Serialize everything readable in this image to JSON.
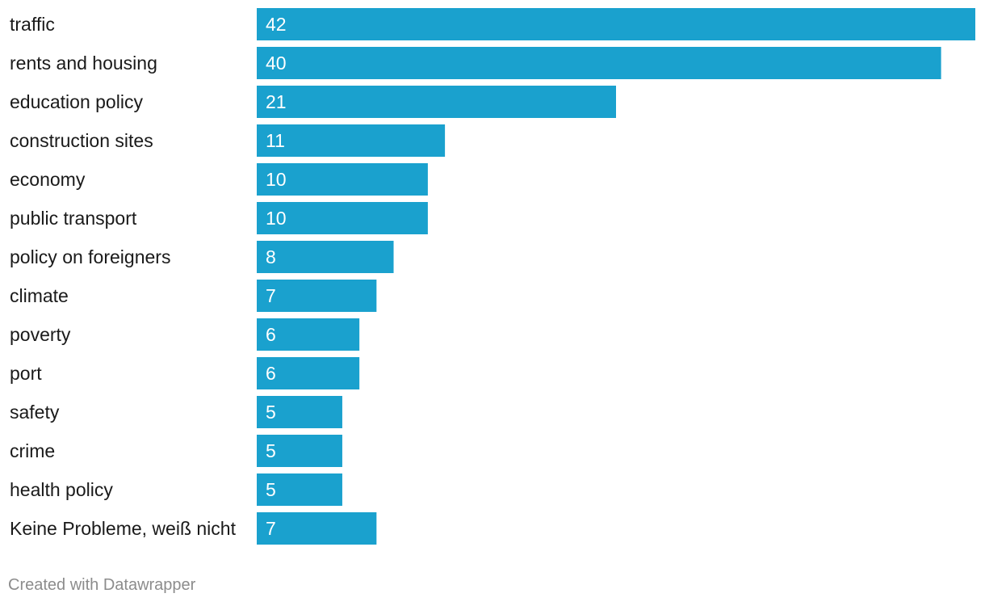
{
  "chart_data": {
    "type": "bar",
    "orientation": "horizontal",
    "categories": [
      "traffic",
      "rents and housing",
      "education policy",
      "construction sites",
      "economy",
      "public transport",
      "policy on foreigners",
      "climate",
      "poverty",
      "port",
      "safety",
      "crime",
      "health policy",
      "Keine Probleme, weiß nicht"
    ],
    "values": [
      42,
      40,
      21,
      11,
      10,
      10,
      8,
      7,
      6,
      6,
      5,
      5,
      5,
      7
    ],
    "value_labels": [
      "42",
      "40",
      "21",
      "11",
      "10",
      "10",
      "8",
      "7",
      "6",
      "6",
      "5",
      "5",
      "5",
      "7"
    ],
    "title": "",
    "xlabel": "",
    "ylabel": "",
    "xlim": [
      0,
      42
    ],
    "grid": false,
    "legend": "none"
  },
  "colors": {
    "bar": "#1aa1ce",
    "value_text": "#ffffff",
    "category_text": "#1a1a1a",
    "footer_text": "#8c8c8c"
  },
  "footer": {
    "credit": "Created with Datawrapper"
  }
}
